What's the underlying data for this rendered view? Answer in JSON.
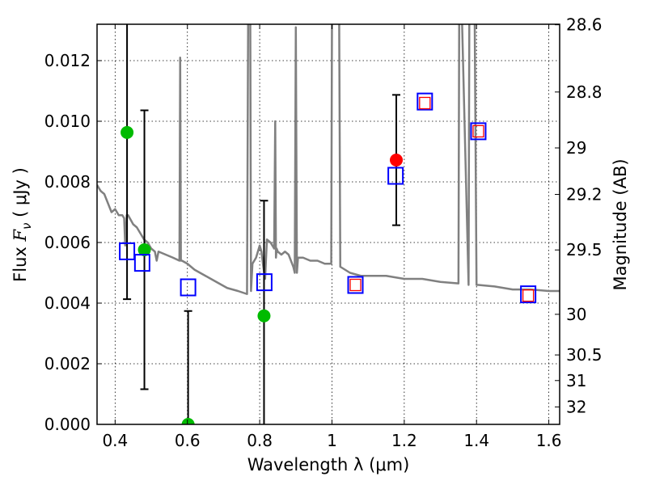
{
  "chart_data": {
    "type": "scatter",
    "xlabel": "Wavelength  λ (μm)",
    "ylabel": "Flux  F_ν  ( μJy )",
    "ylabel_parts": {
      "pre": "Flux  ",
      "sym": "F",
      "sub": "ν",
      "post": "  ( μJy )"
    },
    "y2label": "Magnitude (AB)",
    "xlim": [
      0.35,
      1.63
    ],
    "ylim": [
      0,
      0.0132
    ],
    "grid": true,
    "x_ticks": [
      0.4,
      0.6,
      0.8,
      1.0,
      1.2,
      1.4,
      1.6
    ],
    "x_tick_labels": [
      "0.4",
      "0.6",
      "0.8",
      "1",
      "1.2",
      "1.4",
      "1.6"
    ],
    "y_ticks": [
      0,
      0.002,
      0.004,
      0.006,
      0.008,
      0.01,
      0.012
    ],
    "y_tick_labels": [
      "0.000",
      "0.002",
      "0.004",
      "0.006",
      "0.008",
      "0.010",
      "0.012"
    ],
    "mag_zeropoint": 23.9,
    "y2_ticks": [
      28.6,
      28.8,
      29,
      29.2,
      29.5,
      30,
      30.5,
      31,
      32
    ],
    "y2_tick_labels": [
      "28.6",
      "28.8",
      "29",
      "29.2",
      "29.5",
      "30",
      "30.5",
      "31",
      "32"
    ],
    "colors": {
      "spectrum": "#808080",
      "obs_green": "#00bb00",
      "obs_red": "#ff0000",
      "model": "#0000ff",
      "model_inner": "#ff0000",
      "errbar": "#000000"
    },
    "series": [
      {
        "name": "model spectrum",
        "kind": "line",
        "x": [
          0.35,
          0.36,
          0.37,
          0.38,
          0.39,
          0.4,
          0.41,
          0.42,
          0.425,
          0.428,
          0.432,
          0.436,
          0.45,
          0.46,
          0.47,
          0.48,
          0.49,
          0.5,
          0.51,
          0.515,
          0.52,
          0.54,
          0.56,
          0.578,
          0.58,
          0.582,
          0.585,
          0.6,
          0.62,
          0.65,
          0.68,
          0.71,
          0.74,
          0.765,
          0.768,
          0.77,
          0.774,
          0.776,
          0.78,
          0.79,
          0.8,
          0.805,
          0.81,
          0.815,
          0.82,
          0.83,
          0.84,
          0.843,
          0.845,
          0.847,
          0.85,
          0.86,
          0.87,
          0.88,
          0.893,
          0.897,
          0.9,
          0.903,
          0.906,
          0.92,
          0.94,
          0.96,
          0.98,
          0.998,
          1.0,
          1.02,
          1.023,
          1.05,
          1.08,
          1.1,
          1.15,
          1.2,
          1.25,
          1.3,
          1.35,
          1.352,
          1.36,
          1.378,
          1.38,
          1.382,
          1.395,
          1.4,
          1.405,
          1.45,
          1.5,
          1.55,
          1.6,
          1.63
        ],
        "y": [
          0.0079,
          0.0077,
          0.0076,
          0.0073,
          0.007,
          0.0071,
          0.0069,
          0.0069,
          0.0068,
          0.0059,
          0.0069,
          0.0069,
          0.0066,
          0.0065,
          0.0063,
          0.0061,
          0.006,
          0.0058,
          0.0057,
          0.0054,
          0.0057,
          0.0056,
          0.0055,
          0.0054,
          0.0121,
          0.0054,
          0.0054,
          0.0053,
          0.0051,
          0.0049,
          0.0047,
          0.0045,
          0.0044,
          0.0043,
          0.02,
          0.02,
          0.02,
          0.0044,
          0.0053,
          0.0055,
          0.0059,
          0.0057,
          0.0052,
          0.0048,
          0.0061,
          0.006,
          0.0058,
          0.01,
          0.0055,
          0.0058,
          0.0057,
          0.0056,
          0.0057,
          0.0056,
          0.0052,
          0.005,
          0.0131,
          0.005,
          0.0055,
          0.0055,
          0.0054,
          0.0054,
          0.0053,
          0.0053,
          0.02,
          0.02,
          0.0052,
          0.005,
          0.0049,
          0.0049,
          0.0049,
          0.0048,
          0.0048,
          0.0047,
          0.00465,
          0.02,
          0.02,
          0.0046,
          0.02,
          0.02,
          0.02,
          0.0046,
          0.0046,
          0.00455,
          0.00445,
          0.00445,
          0.0044,
          0.0044
        ]
      },
      {
        "name": "observed (green)",
        "kind": "errorbar",
        "x": [
          0.433,
          0.481,
          0.602,
          0.812
        ],
        "y": [
          0.00963,
          0.00576,
          0.0,
          0.00358
        ],
        "yerr": [
          0.0055,
          0.0046,
          0.00374,
          0.0038
        ]
      },
      {
        "name": "observed (red)",
        "kind": "errorbar",
        "x": [
          1.178
        ],
        "y": [
          0.00872
        ],
        "yerr": [
          0.00215
        ]
      },
      {
        "name": "model photometry",
        "kind": "square",
        "x": [
          0.433,
          0.475,
          0.602,
          0.813,
          1.065,
          1.176,
          1.257,
          1.405,
          1.543
        ],
        "y": [
          0.00571,
          0.00533,
          0.00452,
          0.00469,
          0.0046,
          0.0082,
          0.01065,
          0.00967,
          0.00429
        ]
      },
      {
        "name": "model photometry (red)",
        "kind": "small-square",
        "x": [
          1.065,
          1.257,
          1.405,
          1.543
        ],
        "y": [
          0.0046,
          0.0106,
          0.00967,
          0.00425
        ]
      }
    ]
  }
}
